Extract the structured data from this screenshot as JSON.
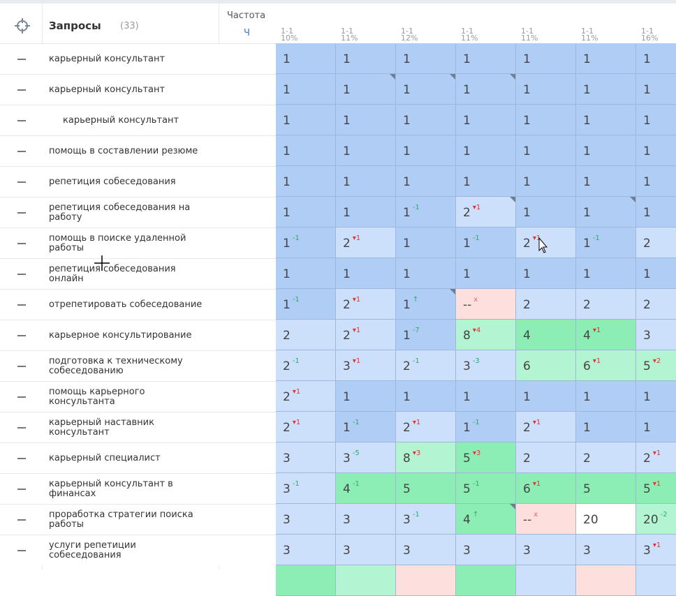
{
  "header": {
    "title": "Запросы",
    "count": "(33)",
    "freq_label": "Частота",
    "freq_sub": "Ч"
  },
  "columns": [
    {
      "range": "1-1",
      "pct": "10%"
    },
    {
      "range": "1-1",
      "pct": "11%"
    },
    {
      "range": "1-1",
      "pct": "12%"
    },
    {
      "range": "1-1",
      "pct": "11%"
    },
    {
      "range": "1-1",
      "pct": "11%"
    },
    {
      "range": "1-1",
      "pct": "11%"
    },
    {
      "range": "1-1",
      "pct": "16%"
    }
  ],
  "colors": {
    "d": "#b0cdf6",
    "l": "#cde0fb",
    "g": "#b3f5d3",
    "G": "#8ceeb5",
    "p": "#fde0de",
    "w": "#ffffff"
  },
  "rows": [
    {
      "query": "карьерный консультант",
      "cells": [
        "1||d",
        "1||d",
        "1||d",
        "1||d",
        "1||d",
        "1||d",
        "1||d"
      ]
    },
    {
      "query": "карьерный консультант",
      "cells": [
        "1||d",
        "1||d",
        "1||d",
        "1||d",
        "1||d",
        "1||d",
        "1||d"
      ]
    },
    {
      "query": "карьерный консультант",
      "indent": true,
      "cells": [
        "1||d",
        "1||d",
        "1||d",
        "1||d",
        "1||d",
        "1||d",
        "1||d"
      ]
    },
    {
      "query": "помощь в составлении резюме",
      "cells": [
        "1||d",
        "1||d",
        "1||d",
        "1||d",
        "1||d",
        "1||d",
        "1||d"
      ]
    },
    {
      "query": "репетиция собеседования",
      "cells": [
        "1||d",
        "1||d",
        "1||d",
        "1||d",
        "1||d",
        "1||d",
        "1||d"
      ]
    },
    {
      "query": "репетиция собеседования на работу",
      "cells": [
        "1||d",
        "1||d",
        "1|-1|d",
        "2|+1|l",
        "1||d",
        "1||d",
        "1||d"
      ]
    },
    {
      "query": "помощь в поиске удаленной работы",
      "cells": [
        "1|-1|d",
        "2|+1|l",
        "1||d",
        "1|-1|d",
        "2|+1|l",
        "1|-1|d",
        "2||l"
      ]
    },
    {
      "query": "репетиция собеседования онлайн",
      "cells": [
        "1||d",
        "1||d",
        "1||d",
        "1||d",
        "1||d",
        "1||d",
        "1||d"
      ]
    },
    {
      "query": "отрепетировать собеседование",
      "cells": [
        "1|-1|d",
        "2|+1|l",
        "1|↑|d",
        "--|x|p",
        "2||l",
        "2||l",
        "2||l"
      ]
    },
    {
      "query": "карьерное консультирование",
      "cells": [
        "2||l",
        "2|+1|l",
        "1|-7|d",
        "8|+4|g",
        "4||G",
        "4|+1|G",
        "3||l"
      ]
    },
    {
      "query": "подготовка к техническому собеседованию",
      "cells": [
        "2|-1|l",
        "3|+1|l",
        "2|-1|l",
        "3|-3|l",
        "6||g",
        "6|+1|g",
        "5|+2|g"
      ]
    },
    {
      "query": "помощь карьерного консультанта",
      "cells": [
        "2|+1|l",
        "1||d",
        "1||d",
        "1||d",
        "1||d",
        "1||d",
        "1||d"
      ]
    },
    {
      "query": "карьерный наставник консультант",
      "cells": [
        "2|+1|l",
        "1|-1|d",
        "2|+1|l",
        "1|-1|d",
        "2|+1|l",
        "1||d",
        "1||d"
      ]
    },
    {
      "query": "карьерный специалист",
      "cells": [
        "3||l",
        "3|-5|l",
        "8|+3|g",
        "5|+3|G",
        "2||l",
        "2||l",
        "2|+1|l"
      ]
    },
    {
      "query": "карьерный консультант в финансах",
      "cells": [
        "3|-1|l",
        "4|-1|G",
        "5||G",
        "5|-1|G",
        "6|+1|G",
        "5||G",
        "5|+1|G"
      ]
    },
    {
      "query": "проработка стратегии поиска работы",
      "cells": [
        "3||l",
        "3||l",
        "3|-1|l",
        "4|↑|G",
        "--|x|p",
        "20||w",
        "20|-2|g"
      ]
    },
    {
      "query": "услуги репетиции собеседования",
      "cells": [
        "3||l",
        "3||l",
        "3||l",
        "3||l",
        "3||l",
        "3||l",
        "3|+1|l"
      ]
    },
    {
      "query": "",
      "cells": [
        "||G",
        "||g",
        "||p",
        "||G",
        "||l",
        "||p",
        "||l"
      ]
    }
  ]
}
